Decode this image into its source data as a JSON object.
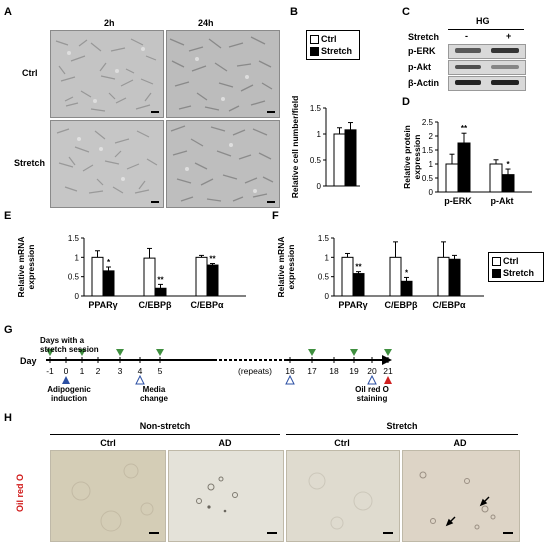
{
  "panels": {
    "A": {
      "letter": "A",
      "col_2h": "2h",
      "col_24h": "24h",
      "row_ctrl": "Ctrl",
      "row_stretch": "Stretch"
    },
    "B": {
      "letter": "B",
      "ylabel": "Relative cell number/field",
      "legend": [
        "Ctrl",
        "Stretch"
      ]
    },
    "C": {
      "letter": "C",
      "header": "HG",
      "stretch_label": "Stretch",
      "minus": "-",
      "plus": "+",
      "bands": [
        "p-ERK",
        "p-Akt",
        "β-Actin"
      ]
    },
    "D": {
      "letter": "D",
      "ylabel": "Relative protein expression"
    },
    "E": {
      "letter": "E",
      "ylabel": "Relative mRNA expression"
    },
    "F": {
      "letter": "F",
      "ylabel": "Relative mRNA expression",
      "legend": [
        "Ctrl",
        "Stretch"
      ]
    },
    "G": {
      "letter": "G",
      "days_label": "Days with a stretch session",
      "day_word": "Day",
      "top_days": [
        "-1",
        "0",
        "1",
        "2",
        "3",
        "4",
        "5"
      ],
      "repeats": "(repeats)",
      "tail_days": [
        "16",
        "17",
        "18",
        "19",
        "20",
        "21"
      ],
      "adipogenic": "Adipogenic induction",
      "media": "Media change",
      "oil": "Oil red O staining"
    },
    "H": {
      "letter": "H",
      "group_nonstretch": "Non-stretch",
      "group_stretch": "Stretch",
      "sub": [
        "Ctrl",
        "AD",
        "Ctrl",
        "AD"
      ],
      "row_label": "Oil red O"
    }
  },
  "chart_data": [
    {
      "id": "B",
      "type": "bar",
      "categories": [
        ""
      ],
      "series": [
        {
          "name": "Ctrl",
          "values": [
            1.0
          ],
          "err": [
            0.12
          ]
        },
        {
          "name": "Stretch",
          "values": [
            1.08
          ],
          "err": [
            0.14
          ]
        }
      ],
      "ylabel": "Relative cell number/field",
      "ylim": [
        0,
        1.5
      ],
      "yticks": [
        0,
        0.5,
        1,
        1.5
      ],
      "yticklabels": [
        "0",
        "0.5",
        "1",
        "1.5"
      ],
      "stars": [
        ""
      ]
    },
    {
      "id": "D",
      "type": "bar",
      "categories": [
        "p-ERK",
        "p-Akt"
      ],
      "series": [
        {
          "name": "Ctrl",
          "values": [
            1.0,
            1.0
          ],
          "err": [
            0.35,
            0.15
          ]
        },
        {
          "name": "Stretch",
          "values": [
            1.75,
            0.62
          ],
          "err": [
            0.35,
            0.2
          ]
        }
      ],
      "ylabel": "Relative protein expression",
      "ylim": [
        0,
        2.5
      ],
      "yticks": [
        0,
        0.5,
        1,
        1.5,
        2,
        2.5
      ],
      "yticklabels": [
        "0",
        "0.5",
        "1",
        "1.5",
        "2",
        "2.5"
      ],
      "stars": [
        "**",
        "*"
      ]
    },
    {
      "id": "E",
      "type": "bar",
      "categories": [
        "PPARγ",
        "C/EBPβ",
        "C/EBPα"
      ],
      "series": [
        {
          "name": "Ctrl",
          "values": [
            1.0,
            0.98,
            1.0
          ],
          "err": [
            0.17,
            0.25,
            0.05
          ]
        },
        {
          "name": "Stretch",
          "values": [
            0.65,
            0.2,
            0.8
          ],
          "err": [
            0.1,
            0.1,
            0.04
          ]
        }
      ],
      "ylabel": "Relative mRNA expression",
      "ylim": [
        0,
        1.5
      ],
      "yticks": [
        0,
        0.5,
        1,
        1.5
      ],
      "yticklabels": [
        "0",
        "0.5",
        "1",
        "1.5"
      ],
      "stars": [
        "*",
        "**",
        "**"
      ]
    },
    {
      "id": "F",
      "type": "bar",
      "categories": [
        "PPARγ",
        "C/EBPβ",
        "C/EBPα"
      ],
      "series": [
        {
          "name": "Ctrl",
          "values": [
            1.0,
            1.0,
            1.0
          ],
          "err": [
            0.1,
            0.4,
            0.4
          ]
        },
        {
          "name": "Stretch",
          "values": [
            0.58,
            0.38,
            0.95
          ],
          "err": [
            0.05,
            0.1,
            0.1
          ]
        }
      ],
      "ylabel": "Relative mRNA expression",
      "ylim": [
        0,
        1.5
      ],
      "yticks": [
        0,
        0.5,
        1,
        1.5
      ],
      "yticklabels": [
        "0",
        "0.5",
        "1",
        "1.5"
      ],
      "stars": [
        "**",
        "*",
        ""
      ]
    }
  ],
  "colors": {
    "ctrl_fill": "#ffffff",
    "stretch_fill": "#000000",
    "arrow_green": "#3f8f3f",
    "triangle_blue": "#2b4fa3",
    "triangle_red": "#d02020",
    "oil_label": "#d01818"
  }
}
